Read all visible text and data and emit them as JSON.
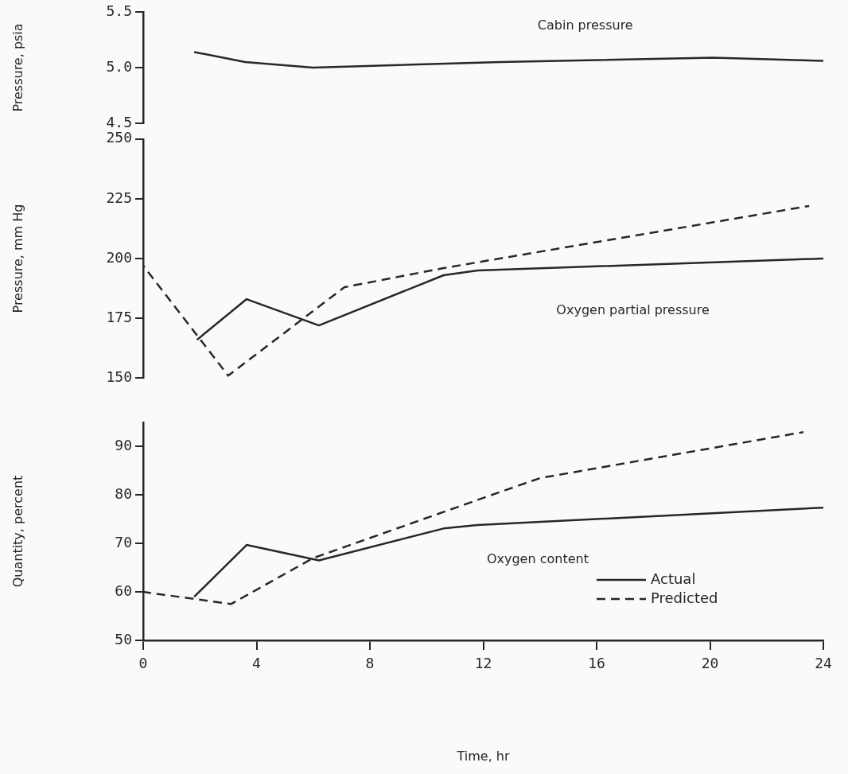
{
  "chart_data": [
    {
      "type": "line",
      "ylabel": "Pressure, psia",
      "xlim": [
        0,
        24
      ],
      "ylim": [
        4.5,
        5.5
      ],
      "yticks": [
        4.5,
        {
          "value": 5,
          "label": "5.0"
        },
        5.5
      ],
      "tick_labels": "y",
      "series": [
        {
          "color": "#2b2626",
          "line_style": "solid",
          "x": [
            1.8,
            3.6,
            6.0,
            12.6,
            20.1,
            24
          ],
          "values": [
            5.14,
            5.05,
            5.0,
            5.05,
            5.09,
            5.06
          ]
        }
      ],
      "annotations": [
        "Cabin pressure"
      ]
    },
    {
      "type": "line",
      "ylabel": "Pressure, mm Hg",
      "xlim": [
        0,
        24
      ],
      "ylim": [
        150,
        250
      ],
      "yticks": [
        150,
        175,
        200,
        225,
        250
      ],
      "tick_labels": "y",
      "series": [
        {
          "color": "#2b2626",
          "line_style": "solid",
          "x": [
            1.9,
            3.65,
            6.2,
            10.6,
            11.8,
            24
          ],
          "values": [
            166,
            183,
            172,
            193,
            195,
            200
          ]
        },
        {
          "color": "#2b2626",
          "line_style": "dashed",
          "x": [
            0,
            3.0,
            7.1,
            10.6,
            23.5
          ],
          "values": [
            197,
            151,
            188,
            196,
            222
          ]
        }
      ],
      "annotations": [
        "Oxygen partial pressure"
      ]
    },
    {
      "type": "line",
      "xlabel": "Time, hr",
      "ylabel": "Quantity, percent",
      "xlim": [
        0,
        24
      ],
      "ylim": [
        50,
        95
      ],
      "xticks": [
        0,
        4,
        8,
        12,
        16,
        20,
        24
      ],
      "yticks": [
        50,
        60,
        70,
        80,
        90
      ],
      "legend": "bottom right",
      "series": [
        {
          "name": "Actual",
          "color": "#2b2626",
          "line_style": "solid",
          "x": [
            1.8,
            3.65,
            6.2,
            10.6,
            11.8,
            24
          ],
          "values": [
            59,
            69.7,
            66.5,
            73.1,
            73.8,
            77.4
          ]
        },
        {
          "name": "Predicted",
          "color": "#2b2626",
          "line_style": "dashed",
          "x": [
            0,
            3.1,
            6,
            11.8,
            14,
            23.3
          ],
          "values": [
            60,
            57.5,
            67,
            79,
            83.5,
            93
          ]
        }
      ],
      "annotations": [
        "Oxygen content"
      ]
    }
  ]
}
